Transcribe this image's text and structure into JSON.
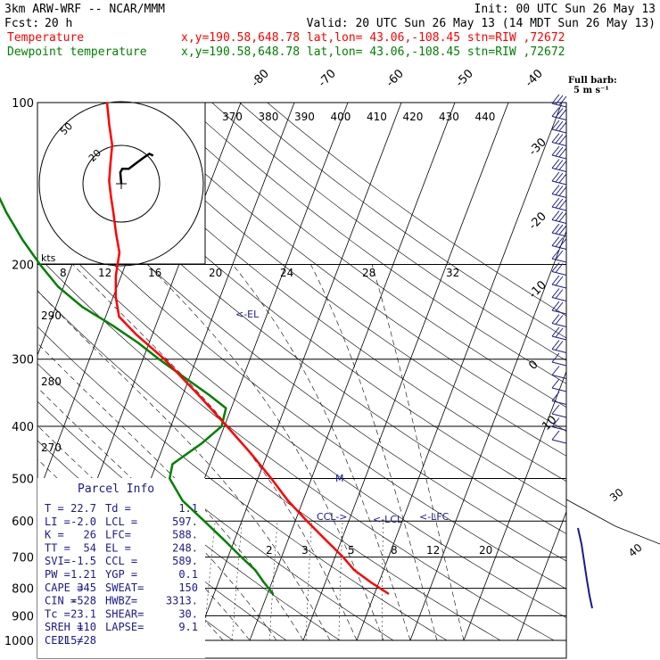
{
  "header": {
    "model": "3km ARW-WRF -- NCAR/MMM",
    "init": "Init: 00 UTC Sun 26 May 13",
    "fcst_label": "Fcst:",
    "fcst_value": "20 h",
    "valid": "Valid: 20 UTC Sun 26 May 13 (14 MDT Sun 26 May 13)",
    "temp_label": "Temperature",
    "dew_label": "Dewpoint temperature",
    "temp_loc": "x,y=190.58,648.78   lat,lon= 43.06,-108.45   stn=RIW ,72672",
    "dew_loc": "x,y=190.58,648.78   lat,lon= 43.06,-108.45   stn=RIW ,72672"
  },
  "colors": {
    "temperature": "#ff0000",
    "dewpoint": "#008000",
    "annotation": "#1a1a8c",
    "header_red": "#ff0000",
    "header_green": "#008000"
  },
  "wind_legend": {
    "title": "Full barb:",
    "value": "5 m s⁻¹"
  },
  "hodograph": {
    "ring_labels": [
      "50",
      "20"
    ],
    "units": "kts"
  },
  "parcel_info": {
    "title": "Parcel Info",
    "rows": [
      [
        "T  =",
        "22.7",
        "Td =",
        "1.1"
      ],
      [
        "LI =",
        "-2.0",
        "LCL =",
        "597."
      ],
      [
        "K  =",
        "26",
        "LFC=",
        "588."
      ],
      [
        "TT =",
        "54",
        "EL =",
        "248."
      ],
      [
        "SVI=",
        "-1.5",
        "CCL =",
        "589."
      ],
      [
        "PW =",
        "1.21",
        "YGP =",
        "0.1"
      ],
      [
        "CAPE =",
        "345",
        "SWEAT=",
        "150"
      ],
      [
        "CIN =",
        "-528",
        "HWBZ=",
        "3313."
      ],
      [
        "Tc =",
        "23.1",
        "SHEAR=",
        "30."
      ],
      [
        "SREH =",
        "110",
        "LAPSE=",
        "9.1"
      ],
      [
        "CELL =",
        "215/28",
        "",
        ""
      ]
    ]
  },
  "annotations": {
    "el": "<-EL",
    "ccl": "CCL->",
    "lcl": "<-LCL",
    "lfc": "<-LFC",
    "m": "M",
    "side_30": "30",
    "side_40": "40"
  },
  "chart_data": {
    "type": "line",
    "title": "",
    "xlabel": "",
    "ylabel": "",
    "y_axis": {
      "scale": "log pressure (hPa)",
      "ticks": [
        100,
        200,
        300,
        400,
        500,
        600,
        700,
        800,
        900,
        1000
      ],
      "range": [
        1000,
        100
      ]
    },
    "isotherm_labels": [
      "-80",
      "-70",
      "-60",
      "-50",
      "-40",
      "-30",
      "-20",
      "-10",
      "0",
      "10"
    ],
    "theta_labels": [
      "370",
      "380",
      "390",
      "400",
      "410",
      "420",
      "430",
      "440"
    ],
    "mixing_ratio_labels": [
      "8",
      "12",
      "16",
      "20",
      "24",
      "28",
      "32"
    ],
    "mixing_ratio_lower_labels": [
      "2",
      "3",
      "5",
      "8",
      "12",
      "20"
    ],
    "left_theta_labels": [
      "290",
      "280",
      "270"
    ],
    "series": [
      {
        "name": "Temperature",
        "points": [
          {
            "p": 820,
            "t": 22.7
          },
          {
            "p": 780,
            "t": 18.5
          },
          {
            "p": 740,
            "t": 14.5
          },
          {
            "p": 700,
            "t": 11.5
          },
          {
            "p": 650,
            "t": 7.0
          },
          {
            "p": 600,
            "t": 2.2
          },
          {
            "p": 550,
            "t": -2.8
          },
          {
            "p": 500,
            "t": -7.5
          },
          {
            "p": 450,
            "t": -13.0
          },
          {
            "p": 400,
            "t": -19.5
          },
          {
            "p": 350,
            "t": -27.0
          },
          {
            "p": 300,
            "t": -36.0
          },
          {
            "p": 270,
            "t": -43.0
          },
          {
            "p": 250,
            "t": -47.5
          },
          {
            "p": 230,
            "t": -49.5
          },
          {
            "p": 210,
            "t": -51.0
          },
          {
            "p": 200,
            "t": -51.5
          },
          {
            "p": 190,
            "t": -52.0
          },
          {
            "p": 175,
            "t": -54.0
          },
          {
            "p": 160,
            "t": -56.0
          },
          {
            "p": 150,
            "t": -57.5
          },
          {
            "p": 140,
            "t": -59.0
          },
          {
            "p": 130,
            "t": -60.0
          },
          {
            "p": 120,
            "t": -61.0
          },
          {
            "p": 110,
            "t": -63.0
          },
          {
            "p": 100,
            "t": -65.0
          }
        ]
      },
      {
        "name": "Dewpoint temperature",
        "points": [
          {
            "p": 820,
            "t": 1.1
          },
          {
            "p": 780,
            "t": -1.5
          },
          {
            "p": 740,
            "t": -4.0
          },
          {
            "p": 700,
            "t": -7.5
          },
          {
            "p": 650,
            "t": -12.0
          },
          {
            "p": 600,
            "t": -17.0
          },
          {
            "p": 550,
            "t": -22.5
          },
          {
            "p": 500,
            "t": -26.5
          },
          {
            "p": 470,
            "t": -27.0
          },
          {
            "p": 430,
            "t": -23.0
          },
          {
            "p": 400,
            "t": -20.5
          },
          {
            "p": 370,
            "t": -21.0
          },
          {
            "p": 350,
            "t": -25.0
          },
          {
            "p": 320,
            "t": -32.0
          },
          {
            "p": 300,
            "t": -37.0
          },
          {
            "p": 280,
            "t": -42.0
          },
          {
            "p": 260,
            "t": -48.0
          },
          {
            "p": 240,
            "t": -55.0
          },
          {
            "p": 220,
            "t": -61.0
          },
          {
            "p": 200,
            "t": -66.0
          },
          {
            "p": 180,
            "t": -71.0
          },
          {
            "p": 160,
            "t": -76.0
          },
          {
            "p": 140,
            "t": -81.0
          },
          {
            "p": 120,
            "t": -86.0
          },
          {
            "p": 110,
            "t": -88.5
          },
          {
            "p": 100,
            "t": -92.0
          }
        ]
      }
    ],
    "hodograph_trace": [
      [
        0,
        0
      ],
      [
        -0.5,
        6
      ],
      [
        0.5,
        8
      ],
      [
        4,
        8
      ],
      [
        8,
        11
      ],
      [
        12,
        14
      ],
      [
        15,
        16
      ],
      [
        17,
        15
      ]
    ],
    "wind_barbs": "right-side column from 100 to 1000 hPa"
  }
}
